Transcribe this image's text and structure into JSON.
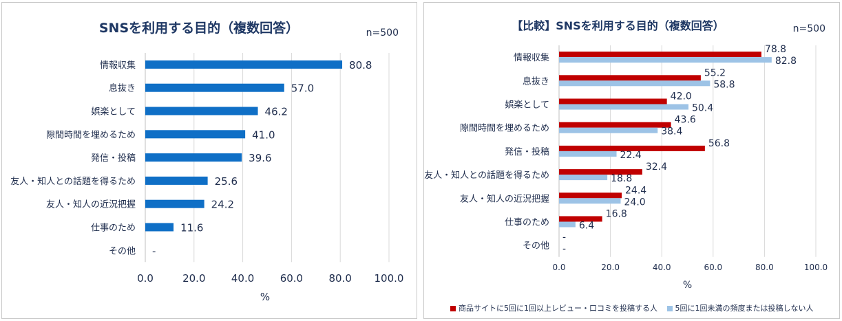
{
  "chart_data": [
    {
      "type": "bar",
      "orientation": "horizontal",
      "title": "SNSを利用する目的（複数回答）",
      "n_label": "n=500",
      "xlabel": "%",
      "xlim": [
        0,
        100
      ],
      "xticks": [
        "0.0",
        "20.0",
        "40.0",
        "60.0",
        "80.0",
        "100.0"
      ],
      "grid": true,
      "categories": [
        "情報収集",
        "息抜き",
        "娯楽として",
        "隙間時間を埋めるため",
        "発信・投稿",
        "友人・知人との話題を得るため",
        "友人・知人の近況把握",
        "仕事のため",
        "その他"
      ],
      "values": [
        80.8,
        57.0,
        46.2,
        41.0,
        39.6,
        25.6,
        24.2,
        11.6,
        0
      ],
      "value_labels": [
        "80.8",
        "57.0",
        "46.2",
        "41.0",
        "39.6",
        "25.6",
        "24.2",
        "11.6",
        "-"
      ],
      "color": "#0f6fc6"
    },
    {
      "type": "bar",
      "orientation": "horizontal",
      "title": "【比較】SNSを利用する目的（複数回答）",
      "n_label": "n=500",
      "xlabel": "%",
      "xlim": [
        0,
        100
      ],
      "xticks": [
        "0.0",
        "20.0",
        "40.0",
        "60.0",
        "80.0",
        "100.0"
      ],
      "grid": true,
      "legend_position": "bottom",
      "categories": [
        "情報収集",
        "息抜き",
        "娯楽として",
        "隙間時間を埋めるため",
        "発信・投稿",
        "友人・知人との話題を得るため",
        "友人・知人の近況把握",
        "仕事のため",
        "その他"
      ],
      "series": [
        {
          "name": "商品サイトに5回に1回以上レビュー・口コミを投稿する人",
          "color": "#c00000",
          "values": [
            78.8,
            55.2,
            42.0,
            43.6,
            56.8,
            32.4,
            24.4,
            16.8,
            0
          ],
          "value_labels": [
            "78.8",
            "55.2",
            "42.0",
            "43.6",
            "56.8",
            "32.4",
            "24.4",
            "16.8",
            "-"
          ]
        },
        {
          "name": "5回に1回未満の頻度または投稿しない人",
          "color": "#9dc3e6",
          "values": [
            82.8,
            58.8,
            50.4,
            38.4,
            22.4,
            18.8,
            24.0,
            6.4,
            0
          ],
          "value_labels": [
            "82.8",
            "58.8",
            "50.4",
            "38.4",
            "22.4",
            "18.8",
            "24.0",
            "6.4",
            "-"
          ]
        }
      ]
    }
  ]
}
